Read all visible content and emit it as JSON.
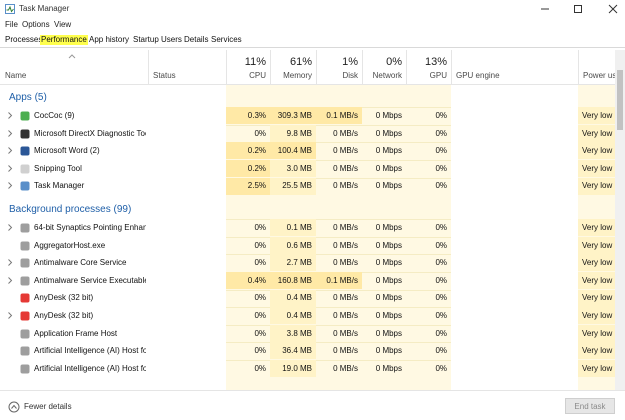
{
  "window": {
    "title": "Task Manager"
  },
  "menu": [
    "File",
    "Options",
    "View"
  ],
  "tabs": {
    "items": [
      "Processes",
      "Performance",
      "App history",
      "Startup",
      "Users",
      "Details",
      "Services"
    ],
    "active": 0,
    "highlighted": 1
  },
  "header": {
    "columns": [
      {
        "label": "Name"
      },
      {
        "label": "Status"
      },
      {
        "label": "CPU",
        "percent": "11%"
      },
      {
        "label": "Memory",
        "percent": "61%"
      },
      {
        "label": "Disk",
        "percent": "1%"
      },
      {
        "label": "Network",
        "percent": "0%"
      },
      {
        "label": "GPU",
        "percent": "13%"
      },
      {
        "label": "GPU engine"
      },
      {
        "label": "Power usage"
      }
    ]
  },
  "groups": [
    {
      "title": "Apps (5)",
      "rows": [
        {
          "name": "CocCoc (9)",
          "cpu": "0.3%",
          "memory": "309.3 MB",
          "disk": "0.1 MB/s",
          "network": "0 Mbps",
          "gpu": "0%",
          "power": "Very low",
          "expandable": true
        },
        {
          "name": "Microsoft DirectX Diagnostic Tool",
          "cpu": "0%",
          "memory": "9.8 MB",
          "disk": "0 MB/s",
          "network": "0 Mbps",
          "gpu": "0%",
          "power": "Very low",
          "expandable": true
        },
        {
          "name": "Microsoft Word (2)",
          "cpu": "0.2%",
          "memory": "100.4 MB",
          "disk": "0 MB/s",
          "network": "0 Mbps",
          "gpu": "0%",
          "power": "Very low",
          "expandable": true
        },
        {
          "name": "Snipping Tool",
          "cpu": "0.2%",
          "memory": "3.0 MB",
          "disk": "0 MB/s",
          "network": "0 Mbps",
          "gpu": "0%",
          "power": "Very low",
          "expandable": true
        },
        {
          "name": "Task Manager",
          "cpu": "2.5%",
          "memory": "25.5 MB",
          "disk": "0 MB/s",
          "network": "0 Mbps",
          "gpu": "0%",
          "power": "Very low",
          "expandable": true
        }
      ]
    },
    {
      "title": "Background processes (99)",
      "rows": [
        {
          "name": "64-bit Synaptics Pointing Enhan...",
          "cpu": "0%",
          "memory": "0.1 MB",
          "disk": "0 MB/s",
          "network": "0 Mbps",
          "gpu": "0%",
          "power": "Very low",
          "expandable": true
        },
        {
          "name": "AggregatorHost.exe",
          "cpu": "0%",
          "memory": "0.6 MB",
          "disk": "0 MB/s",
          "network": "0 Mbps",
          "gpu": "0%",
          "power": "Very low",
          "expandable": false
        },
        {
          "name": "Antimalware Core Service",
          "cpu": "0%",
          "memory": "2.7 MB",
          "disk": "0 MB/s",
          "network": "0 Mbps",
          "gpu": "0%",
          "power": "Very low",
          "expandable": true
        },
        {
          "name": "Antimalware Service Executable",
          "cpu": "0.4%",
          "memory": "160.8 MB",
          "disk": "0.1 MB/s",
          "network": "0 Mbps",
          "gpu": "0%",
          "power": "Very low",
          "expandable": true
        },
        {
          "name": "AnyDesk (32 bit)",
          "cpu": "0%",
          "memory": "0.4 MB",
          "disk": "0 MB/s",
          "network": "0 Mbps",
          "gpu": "0%",
          "power": "Very low",
          "expandable": false
        },
        {
          "name": "AnyDesk (32 bit)",
          "cpu": "0%",
          "memory": "0.4 MB",
          "disk": "0 MB/s",
          "network": "0 Mbps",
          "gpu": "0%",
          "power": "Very low",
          "expandable": true
        },
        {
          "name": "Application Frame Host",
          "cpu": "0%",
          "memory": "3.8 MB",
          "disk": "0 MB/s",
          "network": "0 Mbps",
          "gpu": "0%",
          "power": "Very low",
          "expandable": false
        },
        {
          "name": "Artificial Intelligence (AI) Host fo...",
          "cpu": "0%",
          "memory": "36.4 MB",
          "disk": "0 MB/s",
          "network": "0 Mbps",
          "gpu": "0%",
          "power": "Very low",
          "expandable": false
        },
        {
          "name": "Artificial Intelligence (AI) Host fo...",
          "cpu": "0%",
          "memory": "19.0 MB",
          "disk": "0 MB/s",
          "network": "0 Mbps",
          "gpu": "0%",
          "power": "Very low",
          "expandable": false
        }
      ]
    }
  ],
  "footer": {
    "details": "Fewer details",
    "button": "End task"
  }
}
